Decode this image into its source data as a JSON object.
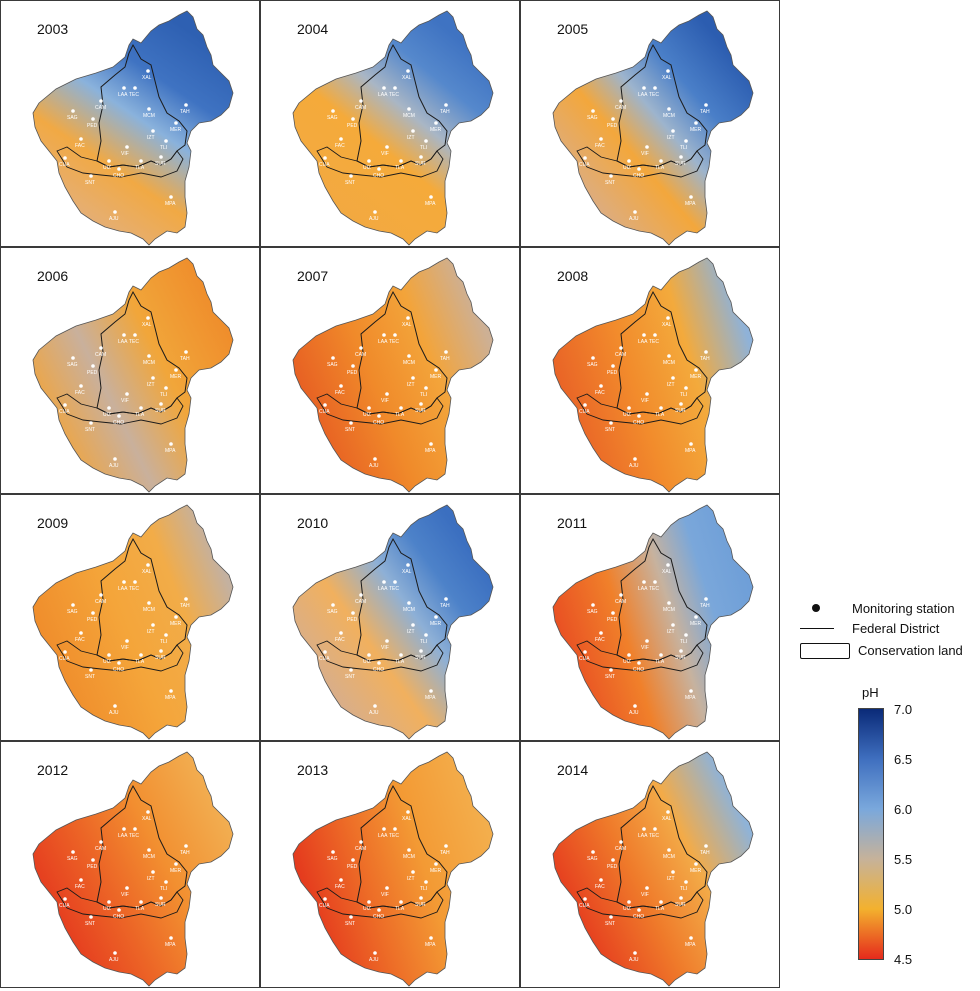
{
  "panels": [
    {
      "year": "2003",
      "gradient": [
        [
          "#e3b07e",
          0.0
        ],
        [
          "#f1a944",
          0.3
        ],
        [
          "#8ab2dc",
          0.55
        ],
        [
          "#3f73c2",
          0.75
        ],
        [
          "#2e60b2",
          1.0
        ]
      ],
      "angle": "60"
    },
    {
      "year": "2004",
      "gradient": [
        [
          "#f2a942",
          0.0
        ],
        [
          "#f5aa3a",
          0.4
        ],
        [
          "#a9b6c5",
          0.6
        ],
        [
          "#5588cc",
          0.8
        ],
        [
          "#3f73c2",
          1.0
        ]
      ],
      "angle": "55"
    },
    {
      "year": "2005",
      "gradient": [
        [
          "#d9ae8c",
          0.0
        ],
        [
          "#f3a73c",
          0.35
        ],
        [
          "#9db4cd",
          0.55
        ],
        [
          "#4a7fc8",
          0.75
        ],
        [
          "#2c5db0",
          1.0
        ]
      ],
      "angle": "45"
    },
    {
      "year": "2006",
      "gradient": [
        [
          "#f2a43a",
          0.0
        ],
        [
          "#c9b09c",
          0.35
        ],
        [
          "#f1a63a",
          0.65
        ],
        [
          "#ef8e2c",
          1.0
        ]
      ],
      "angle": "30"
    },
    {
      "year": "2007",
      "gradient": [
        [
          "#e65a22",
          0.0
        ],
        [
          "#f08a2a",
          0.4
        ],
        [
          "#f3a43a",
          0.7
        ],
        [
          "#cdb095",
          1.0
        ]
      ],
      "angle": "25"
    },
    {
      "year": "2008",
      "gradient": [
        [
          "#e85f26",
          0.0
        ],
        [
          "#f28c2c",
          0.4
        ],
        [
          "#f3aa3c",
          0.7
        ],
        [
          "#8fb2d8",
          1.0
        ]
      ],
      "angle": "20"
    },
    {
      "year": "2009",
      "gradient": [
        [
          "#ef8a2a",
          0.0
        ],
        [
          "#f4a53a",
          0.45
        ],
        [
          "#f2ac48",
          0.75
        ],
        [
          "#c4b1a0",
          1.0
        ]
      ],
      "angle": "25"
    },
    {
      "year": "2010",
      "gradient": [
        [
          "#d3ae94",
          0.0
        ],
        [
          "#f1b05e",
          0.35
        ],
        [
          "#8eb0d6",
          0.6
        ],
        [
          "#4d82c9",
          0.8
        ],
        [
          "#3b6fc0",
          1.0
        ]
      ],
      "angle": "40"
    },
    {
      "year": "2011",
      "gradient": [
        [
          "#e84a22",
          0.0
        ],
        [
          "#f0802a",
          0.35
        ],
        [
          "#c7b29e",
          0.6
        ],
        [
          "#7aa7da",
          0.8
        ],
        [
          "#6f9fd8",
          1.0
        ]
      ],
      "angle": "20"
    },
    {
      "year": "2012",
      "gradient": [
        [
          "#e4351e",
          0.0
        ],
        [
          "#ec6426",
          0.35
        ],
        [
          "#f28f30",
          0.65
        ],
        [
          "#f2ad50",
          1.0
        ]
      ],
      "angle": "30"
    },
    {
      "year": "2013",
      "gradient": [
        [
          "#e3321c",
          0.0
        ],
        [
          "#ed6c27",
          0.35
        ],
        [
          "#f39a34",
          0.65
        ],
        [
          "#f3ae4c",
          1.0
        ]
      ],
      "angle": "20"
    },
    {
      "year": "2014",
      "gradient": [
        [
          "#e4341d",
          0.0
        ],
        [
          "#ef7a2a",
          0.4
        ],
        [
          "#f3ab48",
          0.7
        ],
        [
          "#8fb3d8",
          1.0
        ]
      ],
      "angle": "30"
    }
  ],
  "stations": [
    "AJU",
    "MPA",
    "SNT",
    "TLA",
    "UIZ",
    "SUR",
    "CUA",
    "MCM",
    "LAA",
    "TEC",
    "XAL",
    "MER",
    "PED",
    "CAM",
    "SAG",
    "TLI",
    "VIF",
    "CHO",
    "FAC",
    "IZT",
    "TAH"
  ],
  "legend": {
    "station_label": "Monitoring station",
    "district_label": "Federal District",
    "conservation_label": "Conservation land",
    "ph_title": "pH",
    "ticks": [
      "7.0",
      "6.5",
      "6.0",
      "5.5",
      "5.0",
      "4.5"
    ]
  }
}
